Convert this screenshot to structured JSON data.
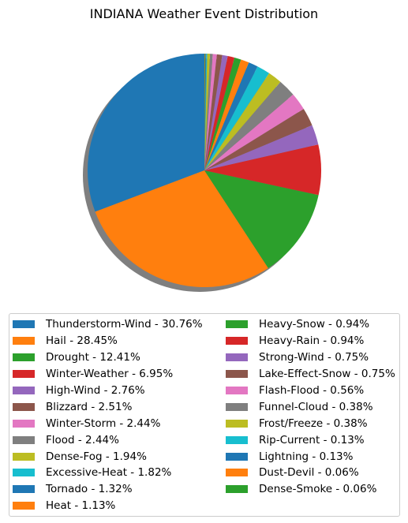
{
  "chart_data": {
    "type": "pie",
    "title": "INDIANA Weather Event Distribution",
    "slices": [
      {
        "label": "Thunderstorm-Wind - 30.76%",
        "value": 30.76,
        "color": "#1f77b4"
      },
      {
        "label": "Hail - 28.45%",
        "value": 28.45,
        "color": "#ff7f0e"
      },
      {
        "label": "Drought - 12.41%",
        "value": 12.41,
        "color": "#2ca02c"
      },
      {
        "label": "Winter-Weather - 6.95%",
        "value": 6.95,
        "color": "#d62728"
      },
      {
        "label": "High-Wind - 2.76%",
        "value": 2.76,
        "color": "#9467bd"
      },
      {
        "label": "Blizzard - 2.51%",
        "value": 2.51,
        "color": "#8c564b"
      },
      {
        "label": "Winter-Storm - 2.44%",
        "value": 2.44,
        "color": "#e377c2"
      },
      {
        "label": "Flood - 2.44%",
        "value": 2.44,
        "color": "#7f7f7f"
      },
      {
        "label": "Dense-Fog - 1.94%",
        "value": 1.94,
        "color": "#bcbd22"
      },
      {
        "label": "Excessive-Heat - 1.82%",
        "value": 1.82,
        "color": "#17becf"
      },
      {
        "label": "Tornado - 1.32%",
        "value": 1.32,
        "color": "#1f77b4"
      },
      {
        "label": "Heat - 1.13%",
        "value": 1.13,
        "color": "#ff7f0e"
      },
      {
        "label": "Heavy-Snow - 0.94%",
        "value": 0.94,
        "color": "#2ca02c"
      },
      {
        "label": "Heavy-Rain - 0.94%",
        "value": 0.94,
        "color": "#d62728"
      },
      {
        "label": "Strong-Wind - 0.75%",
        "value": 0.75,
        "color": "#9467bd"
      },
      {
        "label": "Lake-Effect-Snow - 0.75%",
        "value": 0.75,
        "color": "#8c564b"
      },
      {
        "label": "Flash-Flood - 0.56%",
        "value": 0.56,
        "color": "#e377c2"
      },
      {
        "label": "Funnel-Cloud - 0.38%",
        "value": 0.38,
        "color": "#7f7f7f"
      },
      {
        "label": "Frost/Freeze - 0.38%",
        "value": 0.38,
        "color": "#bcbd22"
      },
      {
        "label": "Rip-Current - 0.13%",
        "value": 0.13,
        "color": "#17becf"
      },
      {
        "label": "Lightning - 0.13%",
        "value": 0.13,
        "color": "#1f77b4"
      },
      {
        "label": "Dust-Devil - 0.06%",
        "value": 0.06,
        "color": "#ff7f0e"
      },
      {
        "label": "Dense-Smoke - 0.06%",
        "value": 0.06,
        "color": "#2ca02c"
      }
    ],
    "start_angle": "90° (top), clockwise",
    "shadow": true,
    "legend_position": "bottom",
    "legend_columns": 2
  }
}
